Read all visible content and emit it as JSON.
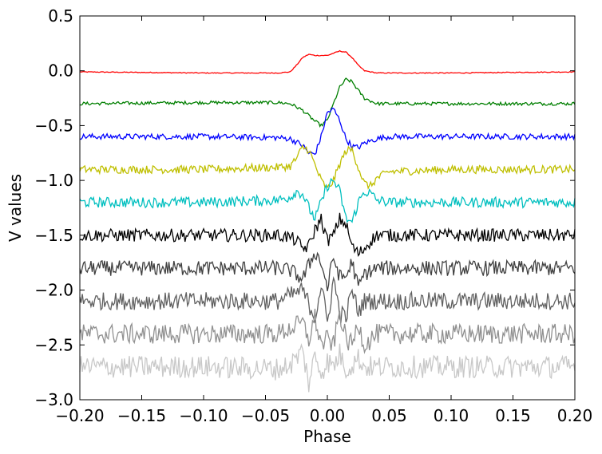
{
  "chart_data": {
    "type": "line",
    "xlabel": "Phase",
    "ylabel": "V values",
    "xlim": [
      -0.2,
      0.2
    ],
    "ylim": [
      -3.0,
      0.5
    ],
    "grid": false,
    "legend": "none",
    "x_ticks": [
      -0.2,
      -0.15,
      -0.1,
      -0.05,
      0.0,
      0.05,
      0.1,
      0.15,
      0.2
    ],
    "x_tick_labels": [
      "−0.20",
      "−0.15",
      "−0.10",
      "−0.05",
      "0.00",
      "0.05",
      "0.10",
      "0.15",
      "0.20"
    ],
    "y_ticks": [
      0.5,
      0.0,
      -0.5,
      -1.0,
      -1.5,
      -2.0,
      -2.5,
      -3.0
    ],
    "y_tick_labels": [
      "0.5",
      "0.0",
      "−0.5",
      "−1.0",
      "−1.5",
      "−2.0",
      "−2.5",
      "−3.0"
    ],
    "series": [
      {
        "color": "#ff0000",
        "x": [
          -0.2,
          -0.1,
          -0.04,
          -0.03,
          -0.025,
          -0.02,
          -0.015,
          -0.01,
          -0.005,
          0.0,
          0.005,
          0.01,
          0.015,
          0.02,
          0.025,
          0.03,
          0.04,
          0.1,
          0.2
        ],
        "y": [
          -0.01,
          -0.02,
          -0.02,
          -0.01,
          0.05,
          0.12,
          0.15,
          0.14,
          0.14,
          0.14,
          0.16,
          0.18,
          0.17,
          0.12,
          0.05,
          0.0,
          -0.02,
          -0.02,
          -0.01
        ]
      },
      {
        "color": "#007f00",
        "x": [
          -0.2,
          -0.1,
          -0.04,
          -0.03,
          -0.02,
          -0.01,
          -0.005,
          0.0,
          0.005,
          0.01,
          0.015,
          0.02,
          0.025,
          0.03,
          0.04,
          0.1,
          0.2
        ],
        "y": [
          -0.3,
          -0.29,
          -0.29,
          -0.3,
          -0.36,
          -0.46,
          -0.5,
          -0.45,
          -0.3,
          -0.15,
          -0.08,
          -0.1,
          -0.18,
          -0.25,
          -0.3,
          -0.3,
          -0.3
        ]
      },
      {
        "color": "#0000ff",
        "x": [
          -0.2,
          -0.1,
          -0.04,
          -0.03,
          -0.02,
          -0.015,
          -0.01,
          -0.005,
          0.0,
          0.005,
          0.01,
          0.015,
          0.02,
          0.025,
          0.03,
          0.04,
          0.05,
          0.1,
          0.2
        ],
        "y": [
          -0.6,
          -0.6,
          -0.61,
          -0.62,
          -0.68,
          -0.75,
          -0.76,
          -0.6,
          -0.38,
          -0.35,
          -0.45,
          -0.62,
          -0.69,
          -0.7,
          -0.66,
          -0.62,
          -0.6,
          -0.6,
          -0.6
        ]
      },
      {
        "color": "#bfbf00",
        "x": [
          -0.2,
          -0.1,
          -0.04,
          -0.03,
          -0.025,
          -0.02,
          -0.015,
          -0.01,
          -0.005,
          0.0,
          0.005,
          0.01,
          0.015,
          0.02,
          0.025,
          0.03,
          0.035,
          0.04,
          0.05,
          0.1,
          0.2
        ],
        "y": [
          -0.9,
          -0.9,
          -0.88,
          -0.87,
          -0.8,
          -0.7,
          -0.72,
          -0.86,
          -1.0,
          -1.08,
          -1.0,
          -0.85,
          -0.73,
          -0.72,
          -0.88,
          -1.03,
          -1.05,
          -0.98,
          -0.92,
          -0.9,
          -0.9
        ]
      },
      {
        "color": "#00bfbf",
        "x": [
          -0.2,
          -0.1,
          -0.04,
          -0.03,
          -0.025,
          -0.02,
          -0.015,
          -0.01,
          -0.005,
          0.0,
          0.005,
          0.01,
          0.015,
          0.02,
          0.025,
          0.03,
          0.035,
          0.04,
          0.05,
          0.1,
          0.2
        ],
        "y": [
          -1.2,
          -1.2,
          -1.18,
          -1.15,
          -1.1,
          -1.12,
          -1.25,
          -1.35,
          -1.2,
          -1.05,
          -1.0,
          -1.1,
          -1.35,
          -1.38,
          -1.2,
          -1.1,
          -1.12,
          -1.18,
          -1.2,
          -1.2,
          -1.2
        ]
      },
      {
        "color": "#000000",
        "x": [
          -0.2,
          -0.1,
          -0.04,
          -0.03,
          -0.025,
          -0.02,
          -0.015,
          -0.01,
          -0.005,
          0.0,
          0.005,
          0.01,
          0.015,
          0.02,
          0.025,
          0.03,
          0.035,
          0.04,
          0.05,
          0.1,
          0.2
        ],
        "y": [
          -1.5,
          -1.5,
          -1.5,
          -1.52,
          -1.55,
          -1.62,
          -1.6,
          -1.45,
          -1.35,
          -1.55,
          -1.5,
          -1.35,
          -1.4,
          -1.6,
          -1.67,
          -1.62,
          -1.55,
          -1.5,
          -1.5,
          -1.5,
          -1.5
        ]
      },
      {
        "color": "#404040",
        "x": [
          -0.2,
          -0.1,
          -0.04,
          -0.03,
          -0.02,
          -0.01,
          -0.005,
          0.0,
          0.005,
          0.01,
          0.015,
          0.02,
          0.025,
          0.03,
          0.04,
          0.1,
          0.2
        ],
        "y": [
          -1.8,
          -1.8,
          -1.8,
          -1.82,
          -1.9,
          -1.65,
          -1.75,
          -1.98,
          -1.7,
          -1.88,
          -1.88,
          -1.74,
          -1.98,
          -1.85,
          -1.8,
          -1.8,
          -1.8
        ]
      },
      {
        "color": "#606060",
        "x": [
          -0.2,
          -0.1,
          -0.04,
          -0.03,
          -0.02,
          -0.01,
          -0.005,
          0.0,
          0.005,
          0.01,
          0.015,
          0.02,
          0.025,
          0.03,
          0.04,
          0.1,
          0.2
        ],
        "y": [
          -2.1,
          -2.1,
          -2.1,
          -2.05,
          -2.0,
          -2.25,
          -1.95,
          -2.3,
          -1.9,
          -2.2,
          -2.25,
          -2.0,
          -2.2,
          -2.1,
          -2.1,
          -2.1,
          -2.1
        ]
      },
      {
        "color": "#909090",
        "x": [
          -0.2,
          -0.1,
          -0.04,
          -0.03,
          -0.02,
          -0.015,
          -0.01,
          -0.005,
          0.0,
          0.005,
          0.01,
          0.015,
          0.02,
          0.025,
          0.03,
          0.04,
          0.1,
          0.2
        ],
        "y": [
          -2.4,
          -2.4,
          -2.4,
          -2.35,
          -2.3,
          -2.45,
          -2.25,
          -2.5,
          -2.45,
          -2.5,
          -2.2,
          -2.45,
          -2.5,
          -2.3,
          -2.5,
          -2.4,
          -2.4,
          -2.4
        ]
      },
      {
        "color": "#c8c8c8",
        "x": [
          -0.2,
          -0.1,
          -0.04,
          -0.03,
          -0.025,
          -0.02,
          -0.015,
          -0.01,
          -0.005,
          0.0,
          0.005,
          0.01,
          0.015,
          0.02,
          0.025,
          0.03,
          0.04,
          0.1,
          0.2
        ],
        "y": [
          -2.7,
          -2.7,
          -2.72,
          -2.68,
          -2.62,
          -2.55,
          -2.85,
          -2.6,
          -2.75,
          -2.65,
          -2.7,
          -2.58,
          -2.72,
          -2.68,
          -2.62,
          -2.7,
          -2.7,
          -2.7,
          -2.7
        ]
      }
    ]
  }
}
